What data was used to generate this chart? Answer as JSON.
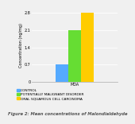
{
  "categories": [
    "MDA"
  ],
  "series": [
    {
      "label": "CONTROL",
      "values": [
        0.7
      ],
      "color": "#55aaff"
    },
    {
      "label": "POTENTIALLY MALIGNANT DISORDER",
      "values": [
        2.1
      ],
      "color": "#66dd33"
    },
    {
      "label": "ORAL SQUAMOUS CELL CARCINOMA",
      "values": [
        2.8
      ],
      "color": "#ffcc00"
    }
  ],
  "ylabel": "Concentration (ng/mg)",
  "ylim": [
    0,
    3.0
  ],
  "yticks": [
    0,
    0.7,
    1.4,
    2.1,
    2.8
  ],
  "bar_width": 0.12,
  "title": "",
  "caption": "Figure 2: Mean concentrations of Malondialdehyde",
  "background_color": "#f0f0f0",
  "grid_color": "#ffffff",
  "caption_fontsize": 3.8,
  "legend_fontsize": 3.2,
  "ylabel_fontsize": 3.5,
  "tick_fontsize": 3.5
}
